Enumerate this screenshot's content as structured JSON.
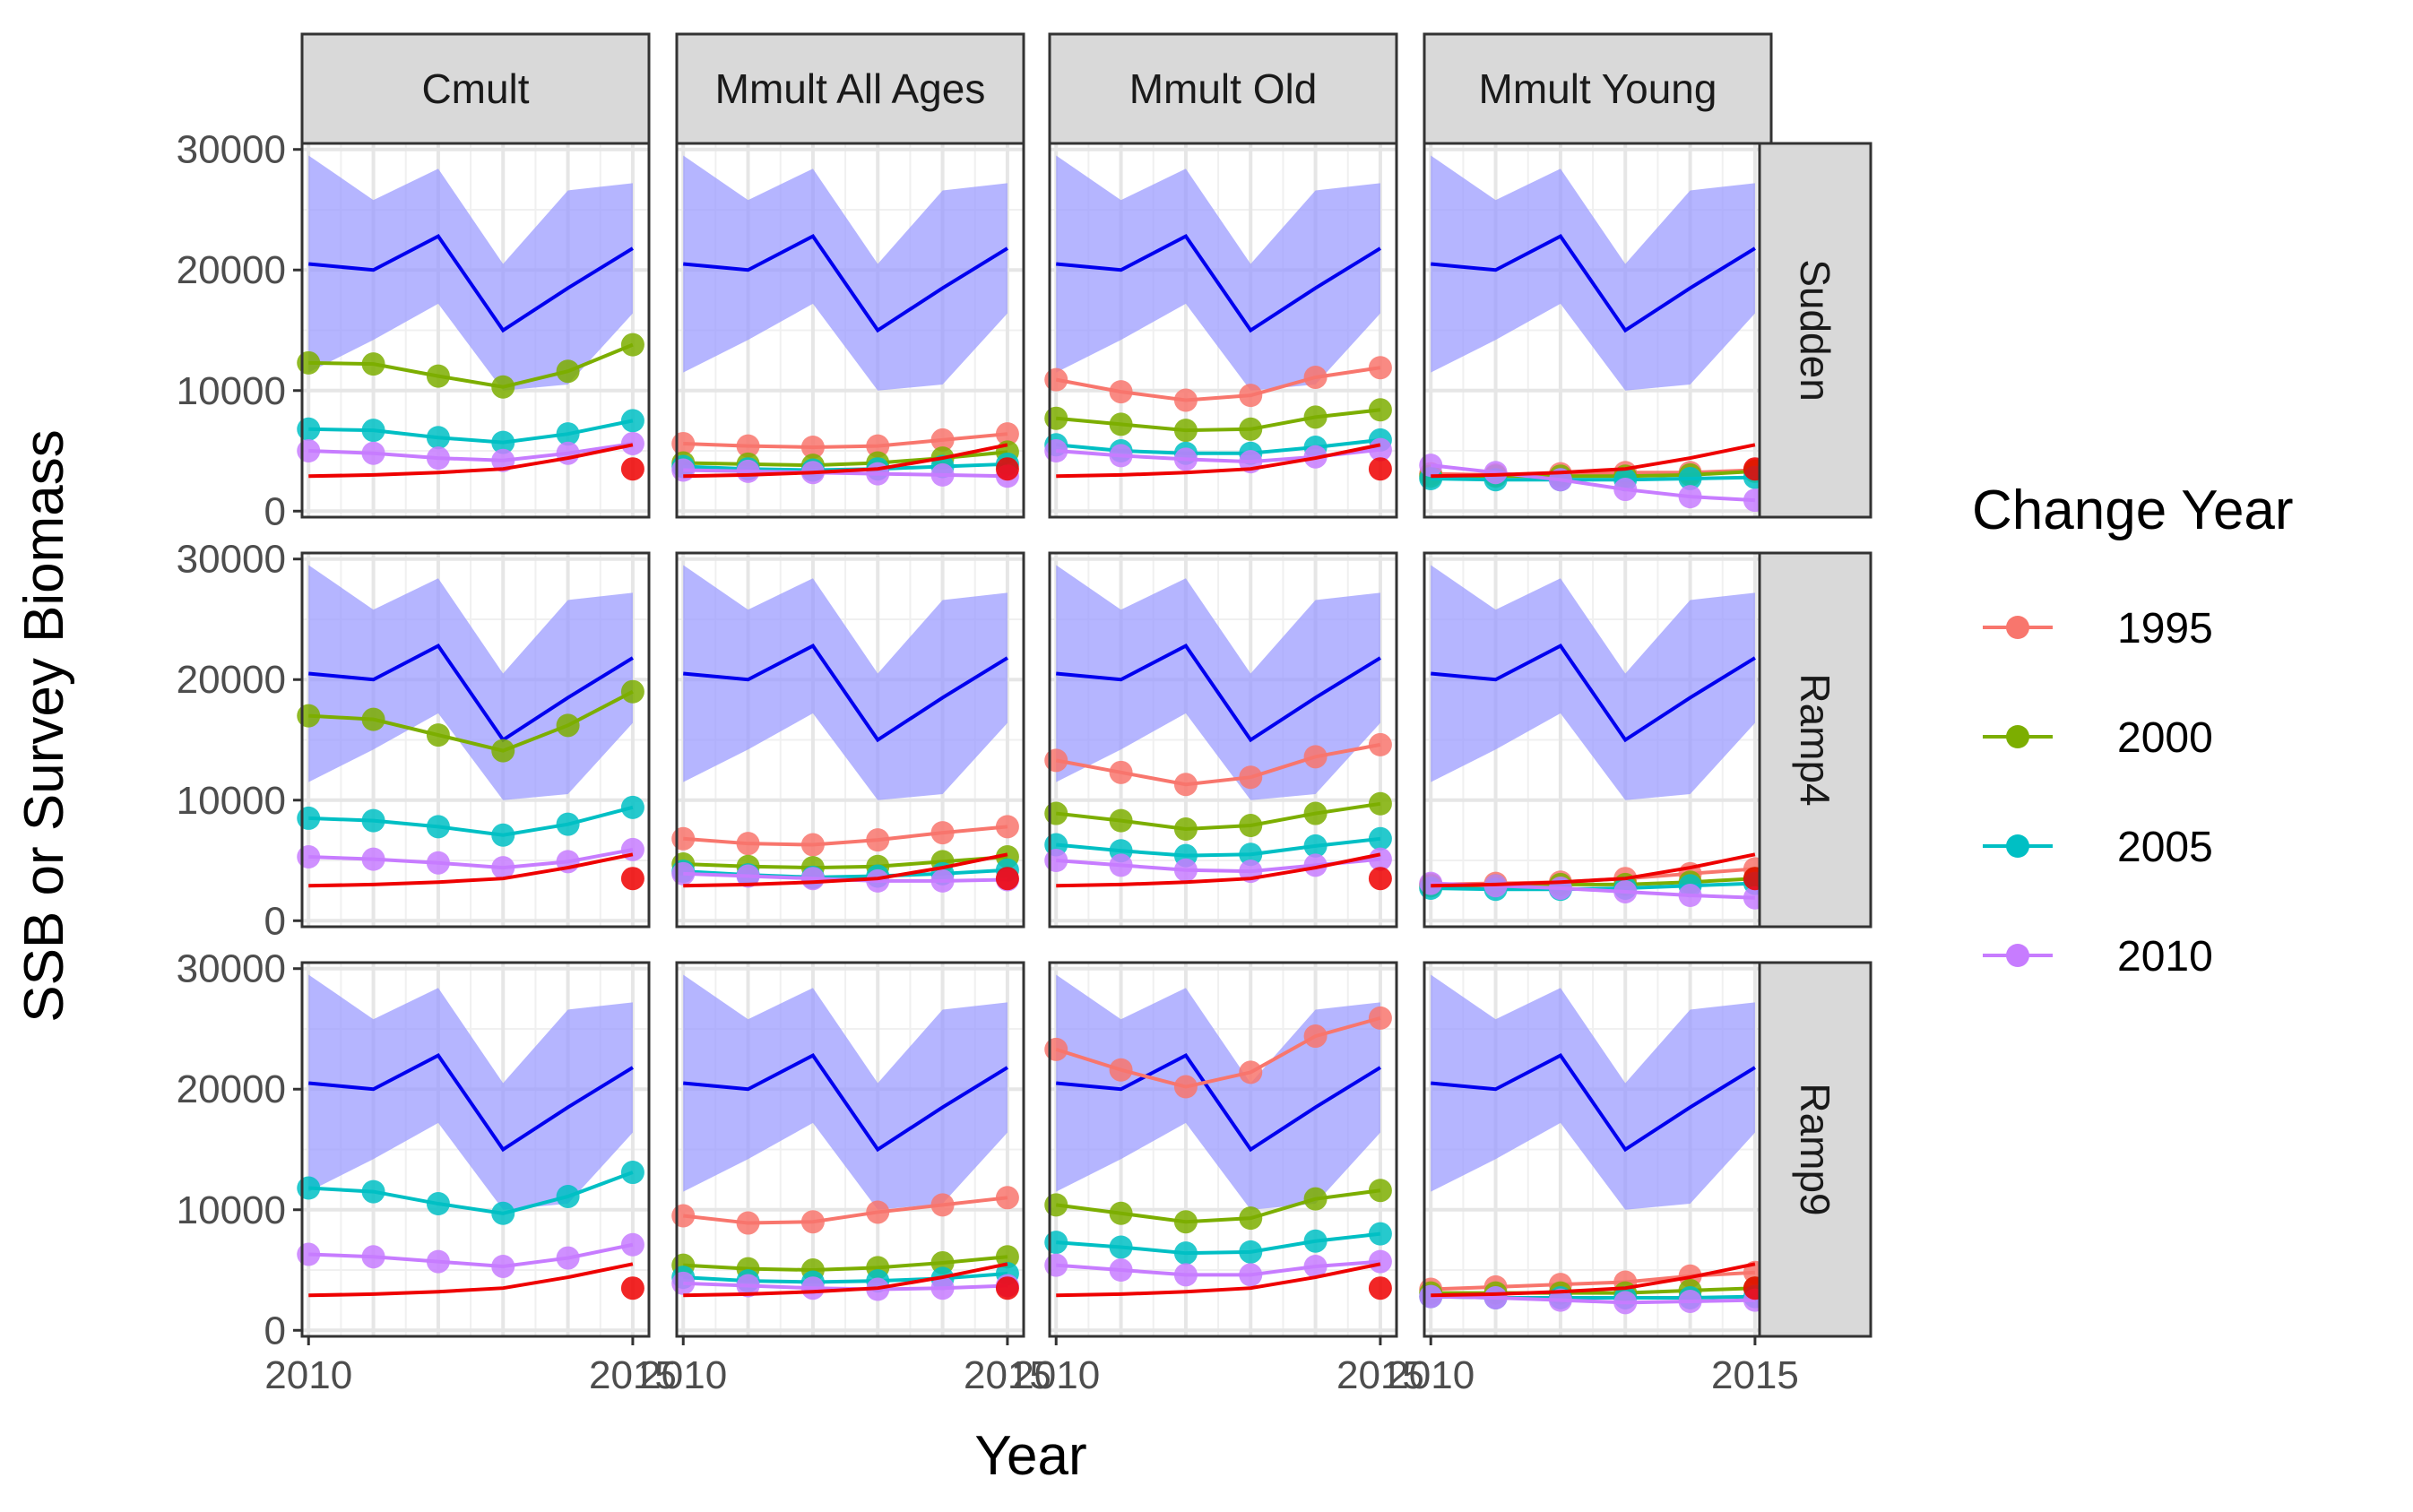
{
  "chart_data": {
    "type": "line",
    "xlabel": "Year",
    "ylabel": "SSB or Survey Biomass",
    "xlim": [
      2009.9,
      2015.25
    ],
    "ylim": [
      -500,
      30500
    ],
    "x_ticks": [
      2010,
      2015
    ],
    "x_tick_labels": [
      "2010",
      "2015"
    ],
    "y_ticks": [
      0,
      10000,
      20000,
      30000
    ],
    "y_tick_labels": [
      "0",
      "10000",
      "20000",
      "30000"
    ],
    "grid": true,
    "columns": [
      "Cmult",
      "Mmult All Ages",
      "Mmult Old",
      "Mmult Young"
    ],
    "rows": [
      "Sudden",
      "Ramp4",
      "Ramp9"
    ],
    "legend": {
      "title": "Change Year",
      "position": "right",
      "entries": [
        {
          "label": "1995",
          "color": "#F8766D"
        },
        {
          "label": "2000",
          "color": "#7CAE00"
        },
        {
          "label": "2005",
          "color": "#00BFC4"
        },
        {
          "label": "2010",
          "color": "#C77CFF"
        }
      ]
    },
    "colors": {
      "survey_line": "#0000EE",
      "survey_band": "#9999FF",
      "ssb_line": "#EE0000",
      "ssb_terminal_point": "#EE0000"
    },
    "survey": {
      "x": [
        2010,
        2011,
        2012,
        2013,
        2014,
        2015
      ],
      "mean": [
        20500,
        20000,
        22800,
        15000,
        18500,
        21800
      ],
      "upper": [
        29500,
        25800,
        28400,
        20500,
        26600,
        27200
      ],
      "lower": [
        11500,
        14200,
        17200,
        10000,
        10500,
        16400
      ]
    },
    "ssb": {
      "x": [
        2010,
        2011,
        2012,
        2013,
        2014,
        2015
      ],
      "values": [
        2900,
        3000,
        3200,
        3500,
        4400,
        5500
      ],
      "terminal_point": 3500
    },
    "panels": [
      {
        "column": "Cmult",
        "row": "Sudden",
        "series": [
          {
            "change_year": "2000",
            "values": [
              12300,
              12200,
              11200,
              10300,
              11600,
              13800
            ]
          },
          {
            "change_year": "2005",
            "values": [
              6800,
              6700,
              6100,
              5700,
              6400,
              7500
            ]
          },
          {
            "change_year": "2010",
            "values": [
              5000,
              4800,
              4400,
              4200,
              4800,
              5600
            ]
          }
        ]
      },
      {
        "column": "Mmult All Ages",
        "row": "Sudden",
        "series": [
          {
            "change_year": "1995",
            "values": [
              5600,
              5400,
              5300,
              5400,
              5900,
              6400
            ]
          },
          {
            "change_year": "2000",
            "values": [
              4000,
              3900,
              3800,
              4000,
              4400,
              4900
            ]
          },
          {
            "change_year": "2005",
            "values": [
              3700,
              3500,
              3400,
              3500,
              3700,
              3900
            ]
          },
          {
            "change_year": "2010",
            "values": [
              3400,
              3300,
              3200,
              3100,
              3000,
              2900
            ]
          }
        ]
      },
      {
        "column": "Mmult Old",
        "row": "Sudden",
        "series": [
          {
            "change_year": "1995",
            "values": [
              10900,
              9900,
              9200,
              9600,
              11100,
              11900
            ]
          },
          {
            "change_year": "2000",
            "values": [
              7700,
              7200,
              6700,
              6800,
              7800,
              8400
            ]
          },
          {
            "change_year": "2005",
            "values": [
              5500,
              5000,
              4800,
              4800,
              5300,
              5900
            ]
          },
          {
            "change_year": "2010",
            "values": [
              5000,
              4600,
              4300,
              4100,
              4500,
              5100
            ]
          }
        ]
      },
      {
        "column": "Mmult Young",
        "row": "Sudden",
        "series": [
          {
            "change_year": "1995",
            "values": [
              3100,
              3000,
              3100,
              3200,
              3200,
              3400
            ]
          },
          {
            "change_year": "2000",
            "values": [
              2900,
              2900,
              2900,
              2900,
              3000,
              3300
            ]
          },
          {
            "change_year": "2005",
            "values": [
              2700,
              2600,
              2600,
              2600,
              2700,
              2800
            ]
          },
          {
            "change_year": "2010",
            "values": [
              3800,
              3200,
              2600,
              1800,
              1200,
              900
            ]
          }
        ]
      },
      {
        "column": "Cmult",
        "row": "Ramp4",
        "series": [
          {
            "change_year": "2000",
            "values": [
              17000,
              16700,
              15400,
              14100,
              16200,
              19000
            ]
          },
          {
            "change_year": "2005",
            "values": [
              8500,
              8300,
              7800,
              7100,
              8000,
              9400
            ]
          },
          {
            "change_year": "2010",
            "values": [
              5300,
              5100,
              4800,
              4400,
              4900,
              5900
            ]
          }
        ]
      },
      {
        "column": "Mmult All Ages",
        "row": "Ramp4",
        "series": [
          {
            "change_year": "1995",
            "values": [
              6800,
              6400,
              6300,
              6700,
              7300,
              7800
            ]
          },
          {
            "change_year": "2000",
            "values": [
              4700,
              4500,
              4400,
              4500,
              4900,
              5300
            ]
          },
          {
            "change_year": "2005",
            "values": [
              4100,
              3800,
              3600,
              3700,
              3900,
              4200
            ]
          },
          {
            "change_year": "2010",
            "values": [
              3900,
              3700,
              3500,
              3300,
              3300,
              3400
            ]
          }
        ]
      },
      {
        "column": "Mmult Old",
        "row": "Ramp4",
        "series": [
          {
            "change_year": "1995",
            "values": [
              13300,
              12300,
              11300,
              11900,
              13600,
              14600
            ]
          },
          {
            "change_year": "2000",
            "values": [
              8900,
              8300,
              7600,
              7900,
              8900,
              9700
            ]
          },
          {
            "change_year": "2005",
            "values": [
              6300,
              5800,
              5400,
              5500,
              6200,
              6800
            ]
          },
          {
            "change_year": "2010",
            "values": [
              5000,
              4600,
              4200,
              4100,
              4600,
              5100
            ]
          }
        ]
      },
      {
        "column": "Mmult Young",
        "row": "Ramp4",
        "series": [
          {
            "change_year": "1995",
            "values": [
              3000,
              3100,
              3200,
              3500,
              3900,
              4300
            ]
          },
          {
            "change_year": "2000",
            "values": [
              2900,
              2900,
              3000,
              3000,
              3200,
              3500
            ]
          },
          {
            "change_year": "2005",
            "values": [
              2700,
              2600,
              2600,
              2700,
              2900,
              3100
            ]
          },
          {
            "change_year": "2010",
            "values": [
              3100,
              2900,
              2700,
              2400,
              2100,
              1900
            ]
          }
        ]
      },
      {
        "column": "Cmult",
        "row": "Ramp9",
        "series": [
          {
            "change_year": "2005",
            "values": [
              11800,
              11500,
              10500,
              9700,
              11100,
              13100
            ]
          },
          {
            "change_year": "2010",
            "values": [
              6300,
              6100,
              5700,
              5300,
              6000,
              7100
            ]
          }
        ]
      },
      {
        "column": "Mmult All Ages",
        "row": "Ramp9",
        "series": [
          {
            "change_year": "1995",
            "values": [
              9500,
              8900,
              9000,
              9800,
              10400,
              11000
            ]
          },
          {
            "change_year": "2000",
            "values": [
              5400,
              5100,
              5000,
              5200,
              5600,
              6100
            ]
          },
          {
            "change_year": "2005",
            "values": [
              4400,
              4100,
              4000,
              4100,
              4300,
              4700
            ]
          },
          {
            "change_year": "2010",
            "values": [
              3900,
              3700,
              3500,
              3400,
              3500,
              3700
            ]
          }
        ]
      },
      {
        "column": "Mmult Old",
        "row": "Ramp9",
        "series": [
          {
            "change_year": "1995",
            "values": [
              23300,
              21600,
              20200,
              21400,
              24400,
              25900
            ]
          },
          {
            "change_year": "2000",
            "values": [
              10400,
              9700,
              9000,
              9300,
              10900,
              11600
            ]
          },
          {
            "change_year": "2005",
            "values": [
              7300,
              6900,
              6400,
              6500,
              7400,
              8000
            ]
          },
          {
            "change_year": "2010",
            "values": [
              5400,
              5000,
              4600,
              4600,
              5300,
              5700
            ]
          }
        ]
      },
      {
        "column": "Mmult Young",
        "row": "Ramp9",
        "series": [
          {
            "change_year": "1995",
            "values": [
              3400,
              3600,
              3800,
              4000,
              4500,
              4800
            ]
          },
          {
            "change_year": "2000",
            "values": [
              3100,
              3100,
              3100,
              3100,
              3300,
              3500
            ]
          },
          {
            "change_year": "2005",
            "values": [
              2800,
              2700,
              2700,
              2700,
              2700,
              2800
            ]
          },
          {
            "change_year": "2010",
            "values": [
              2800,
              2700,
              2500,
              2300,
              2400,
              2500
            ]
          }
        ]
      }
    ]
  }
}
